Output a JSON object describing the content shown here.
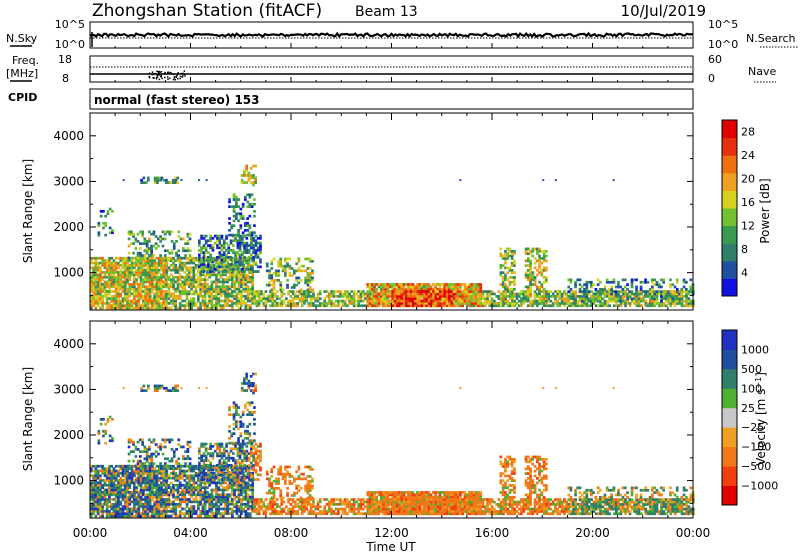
{
  "header": {
    "station": "Zhongshan Station (fitACF)",
    "beam": "Beam 13",
    "date": "10/Jul/2019"
  },
  "nsky_panel": {
    "left_label": "N.Sky",
    "right_label": "N.Search",
    "left_ticks": [
      "10^5",
      "10^0"
    ],
    "right_ticks": [
      "10^5",
      "10^0"
    ]
  },
  "freq_panel": {
    "left_label_1": "Freq.",
    "left_label_2": "[MHz]",
    "right_label": "Nave",
    "left_ticks": [
      "18",
      "8"
    ],
    "right_ticks": [
      "60",
      "0"
    ]
  },
  "cpid": {
    "label": "CPID",
    "value": "normal (fast stereo) 153"
  },
  "colors": {
    "power": [
      "#1010e0",
      "#2050a0",
      "#2f7f6a",
      "#3a9a50",
      "#70c030",
      "#d8d020",
      "#f0a020",
      "#f07010",
      "#e83010",
      "#e00000"
    ],
    "velocity": [
      "#e00000",
      "#f04010",
      "#f07818",
      "#f0a020",
      "#c8c8c8",
      "#50b030",
      "#2f7f6a",
      "#2050a0",
      "#2030c0"
    ]
  },
  "chart_data": [
    {
      "type": "heatmap",
      "name": "power",
      "ylabel": "Slant Range [km]",
      "xlim": [
        0,
        24
      ],
      "ylim": [
        180,
        4500
      ],
      "yticks": [
        "1000",
        "2000",
        "3000",
        "4000"
      ],
      "colorbar": {
        "label": "Power [dB]",
        "ticks": [
          "4",
          "8",
          "12",
          "16",
          "20",
          "24",
          "28"
        ],
        "range": [
          0,
          30
        ]
      }
    },
    {
      "type": "heatmap",
      "name": "velocity",
      "ylabel": "Slant Range [km]",
      "xlabel": "Time UT",
      "xlim": [
        0,
        24
      ],
      "ylim": [
        180,
        4500
      ],
      "xticks": [
        "00:00",
        "04:00",
        "08:00",
        "12:00",
        "16:00",
        "20:00",
        "00:00"
      ],
      "yticks": [
        "1000",
        "2000",
        "3000",
        "4000"
      ],
      "colorbar": {
        "label": "Velocity [m s^-1]",
        "ticks": [
          "1000",
          "500",
          "100",
          "25",
          "-25",
          "-100",
          "-500",
          "-1000"
        ]
      }
    }
  ]
}
